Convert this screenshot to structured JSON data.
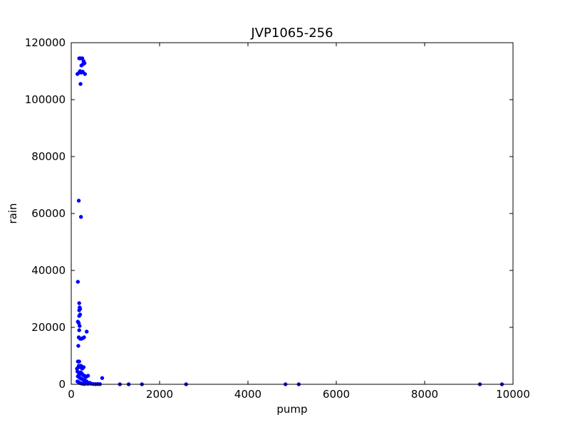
{
  "chart_data": {
    "type": "scatter",
    "title": "JVP1065-256",
    "xlabel": "pump",
    "ylabel": "rain",
    "xlim": [
      0,
      10000
    ],
    "ylim": [
      0,
      120000
    ],
    "xticks": [
      0,
      2000,
      4000,
      6000,
      8000,
      10000
    ],
    "yticks": [
      0,
      20000,
      40000,
      60000,
      80000,
      100000,
      120000
    ],
    "x_tick_labels": [
      "0",
      "2000",
      "4000",
      "6000",
      "8000",
      "10000"
    ],
    "y_tick_labels": [
      "0",
      "20000",
      "40000",
      "60000",
      "80000",
      "100000",
      "120000"
    ],
    "grid": false,
    "color": "#0000ff",
    "series": [
      {
        "points": [
          [
            180,
            114500
          ],
          [
            210,
            114500
          ],
          [
            250,
            114500
          ],
          [
            280,
            113500
          ],
          [
            300,
            112800
          ],
          [
            230,
            112000
          ],
          [
            270,
            112500
          ],
          [
            140,
            109000
          ],
          [
            180,
            109500
          ],
          [
            200,
            110000
          ],
          [
            230,
            109500
          ],
          [
            260,
            109800
          ],
          [
            310,
            109000
          ],
          [
            210,
            105500
          ],
          [
            170,
            64500
          ],
          [
            220,
            58800
          ],
          [
            150,
            36000
          ],
          [
            180,
            28500
          ],
          [
            190,
            27000
          ],
          [
            180,
            26000
          ],
          [
            200,
            26500
          ],
          [
            180,
            24000
          ],
          [
            200,
            24500
          ],
          [
            150,
            22000
          ],
          [
            170,
            21500
          ],
          [
            190,
            20500
          ],
          [
            180,
            19000
          ],
          [
            170,
            16500
          ],
          [
            200,
            16000
          ],
          [
            230,
            16000
          ],
          [
            260,
            16200
          ],
          [
            290,
            16500
          ],
          [
            350,
            18500
          ],
          [
            160,
            13500
          ],
          [
            150,
            8000
          ],
          [
            180,
            8000
          ],
          [
            160,
            6000
          ],
          [
            130,
            5500
          ],
          [
            170,
            6500
          ],
          [
            200,
            6000
          ],
          [
            220,
            6500
          ],
          [
            250,
            5500
          ],
          [
            280,
            6000
          ],
          [
            140,
            4500
          ],
          [
            170,
            4000
          ],
          [
            190,
            3500
          ],
          [
            210,
            4200
          ],
          [
            240,
            3800
          ],
          [
            270,
            3200
          ],
          [
            300,
            3000
          ],
          [
            330,
            2500
          ],
          [
            380,
            3000
          ],
          [
            150,
            2800
          ],
          [
            180,
            2500
          ],
          [
            200,
            2200
          ],
          [
            220,
            2000
          ],
          [
            250,
            1800
          ],
          [
            280,
            1500
          ],
          [
            310,
            1200
          ],
          [
            350,
            1000
          ],
          [
            420,
            500
          ],
          [
            140,
            1000
          ],
          [
            160,
            800
          ],
          [
            180,
            600
          ],
          [
            200,
            400
          ],
          [
            230,
            300
          ],
          [
            260,
            200
          ],
          [
            300,
            100
          ],
          [
            340,
            300
          ],
          [
            380,
            150
          ],
          [
            450,
            200
          ],
          [
            500,
            100
          ],
          [
            550,
            50
          ],
          [
            600,
            80
          ],
          [
            650,
            60
          ],
          [
            700,
            2200
          ],
          [
            1100,
            0
          ],
          [
            1300,
            0
          ],
          [
            1600,
            0
          ],
          [
            2600,
            0
          ],
          [
            4850,
            0
          ],
          [
            5150,
            0
          ],
          [
            9250,
            0
          ],
          [
            9750,
            0
          ]
        ]
      }
    ]
  }
}
